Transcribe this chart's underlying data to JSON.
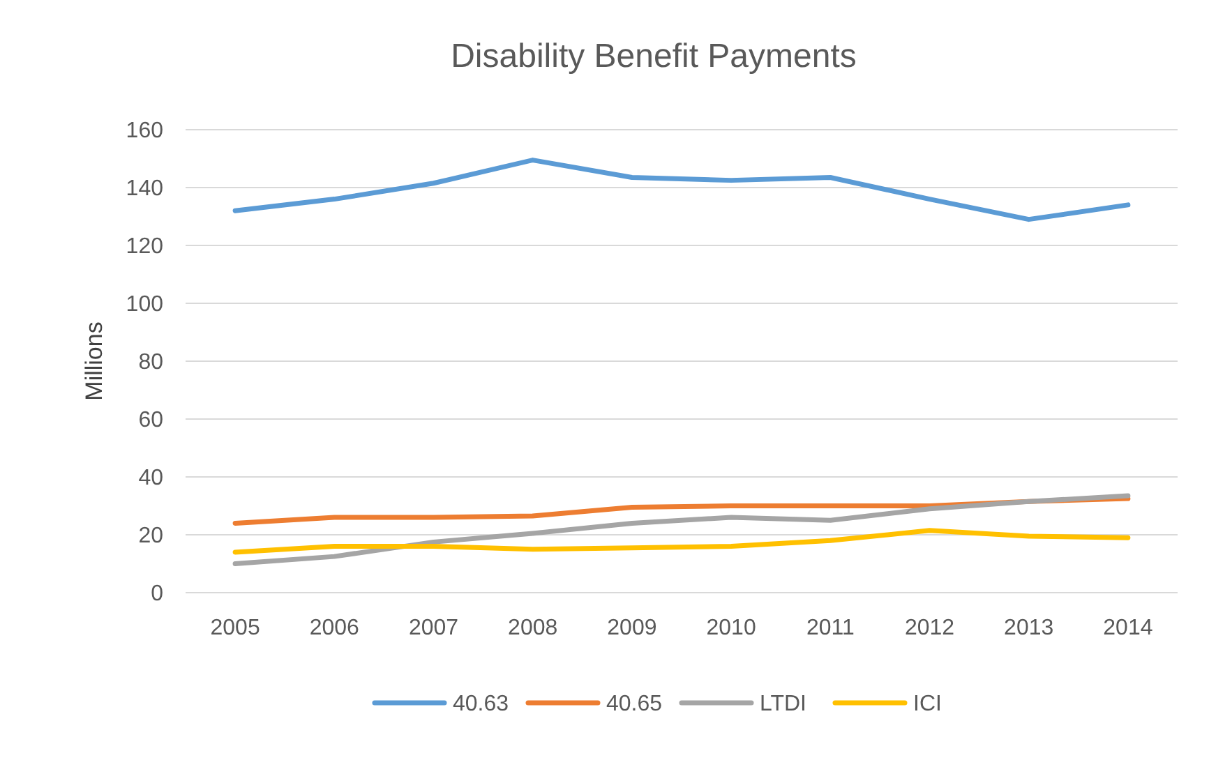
{
  "chart_data": {
    "type": "line",
    "title": "Disability Benefit Payments",
    "ylabel": "Millions",
    "categories": [
      "2005",
      "2006",
      "2007",
      "2008",
      "2009",
      "2010",
      "2011",
      "2012",
      "2013",
      "2014"
    ],
    "series": [
      {
        "name": "40.63",
        "color": "#5b9bd5",
        "values": [
          132,
          136,
          141.5,
          149.5,
          143.5,
          142.5,
          143.5,
          136,
          129,
          134
        ]
      },
      {
        "name": "40.65",
        "color": "#ed7d31",
        "values": [
          24,
          26,
          26,
          26.5,
          29.5,
          30,
          30,
          30,
          31.5,
          32.5
        ]
      },
      {
        "name": "LTDI",
        "color": "#a5a5a5",
        "values": [
          10,
          12.5,
          17.5,
          20.5,
          24,
          26,
          25,
          29,
          31.5,
          33.5
        ]
      },
      {
        "name": "ICI",
        "color": "#ffc000",
        "values": [
          14,
          16,
          16,
          15,
          15.5,
          16,
          18,
          21.5,
          19.5,
          19
        ]
      }
    ],
    "ylim": [
      0,
      160
    ],
    "yticks": [
      0,
      20,
      40,
      60,
      80,
      100,
      120,
      140,
      160
    ],
    "grid": "y",
    "legend": "bottom",
    "marker": "none",
    "line_style": "solid"
  }
}
